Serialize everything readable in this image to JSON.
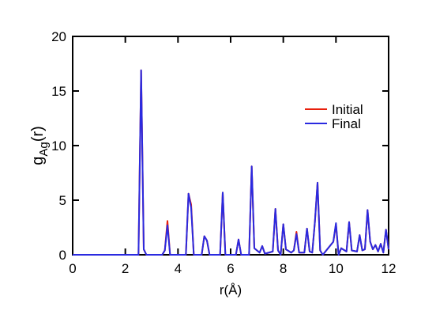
{
  "chart_data": {
    "type": "line",
    "xlabel": "r(Å)",
    "ylabel": [
      "g",
      "Ag",
      "(r)"
    ],
    "x": [
      0,
      2.5,
      2.6,
      2.7,
      2.8,
      3.4,
      3.5,
      3.6,
      3.7,
      4.3,
      4.4,
      4.5,
      4.6,
      4.9,
      5.0,
      5.1,
      5.2,
      5.6,
      5.7,
      5.8,
      6.2,
      6.3,
      6.4,
      6.7,
      6.8,
      6.9,
      7.1,
      7.2,
      7.3,
      7.6,
      7.7,
      7.8,
      7.9,
      8.0,
      8.1,
      8.3,
      8.4,
      8.5,
      8.6,
      8.8,
      8.9,
      9.0,
      9.1,
      9.2,
      9.3,
      9.4,
      9.5,
      9.9,
      10.0,
      10.1,
      10.2,
      10.4,
      10.5,
      10.6,
      10.8,
      10.9,
      11.0,
      11.1,
      11.2,
      11.3,
      11.4,
      11.5,
      11.6,
      11.7,
      11.8,
      11.9,
      12
    ],
    "series": [
      {
        "name": "Initial",
        "color": "#e8200c",
        "values": [
          0,
          0,
          16.9,
          0.5,
          0,
          0,
          0.4,
          3.1,
          0,
          0,
          5.6,
          4.6,
          0,
          0,
          1.7,
          1.3,
          0,
          0,
          5.7,
          0,
          0,
          1.4,
          0,
          0,
          8.1,
          0.6,
          0.2,
          0.8,
          0.1,
          0.3,
          4.2,
          0.4,
          0,
          2.8,
          0.5,
          0.2,
          0.4,
          2.1,
          0.2,
          0.2,
          2.4,
          0.3,
          0.2,
          3.0,
          6.6,
          0.4,
          0,
          1.2,
          2.8,
          0,
          0.6,
          0.3,
          3.0,
          0.4,
          0.3,
          1.8,
          0.4,
          0.5,
          4.1,
          1.2,
          0.5,
          0.9,
          0.3,
          1.0,
          0.2,
          2.3,
          0.5
        ]
      },
      {
        "name": "Final",
        "color": "#2a2ae0",
        "values": [
          0,
          0,
          16.9,
          0.5,
          0,
          0,
          0.4,
          2.7,
          0,
          0,
          5.6,
          4.3,
          0,
          0,
          1.7,
          1.3,
          0,
          0,
          5.7,
          0,
          0,
          1.4,
          0,
          0,
          8.1,
          0.6,
          0.2,
          0.8,
          0.1,
          0.3,
          4.2,
          0.4,
          0,
          2.8,
          0.5,
          0.2,
          0.4,
          1.9,
          0.2,
          0.2,
          2.4,
          0.3,
          0.2,
          3.0,
          6.6,
          0.4,
          0,
          1.2,
          2.9,
          0,
          0.6,
          0.3,
          3.0,
          0.4,
          0.3,
          1.8,
          0.4,
          0.5,
          4.1,
          1.2,
          0.5,
          0.9,
          0.3,
          1.0,
          0.2,
          2.3,
          0.5
        ]
      }
    ],
    "xlim": [
      0,
      12
    ],
    "xticks": [
      0,
      2,
      4,
      6,
      8,
      10,
      12
    ],
    "ylim": [
      0,
      20
    ],
    "yticks": [
      0,
      5,
      10,
      15,
      20
    ]
  }
}
